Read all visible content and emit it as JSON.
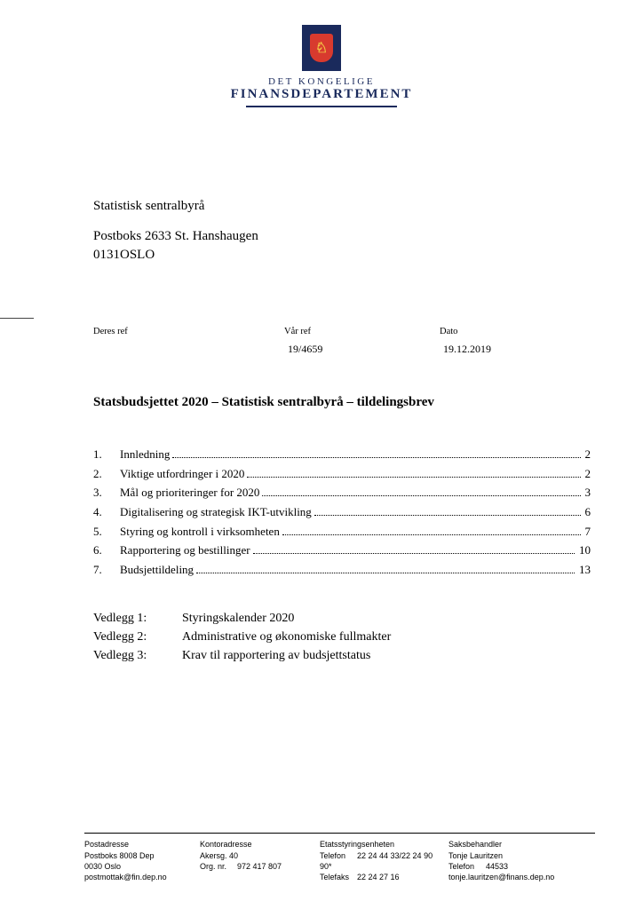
{
  "logo": {
    "line1": "DET KONGELIGE",
    "line2": "FINANSDEPARTEMENT",
    "crest_bg": "#1a2a5c",
    "shield_color": "#d83a2e",
    "lion_color": "#f2c744"
  },
  "recipient": {
    "name": "Statistisk sentralbyrå",
    "address1": "Postboks 2633 St. Hanshaugen",
    "address2": "0131OSLO"
  },
  "refs": {
    "your_ref_label": "Deres ref",
    "your_ref_value": "",
    "our_ref_label": "Vår ref",
    "our_ref_value": "19/4659",
    "date_label": "Dato",
    "date_value": "19.12.2019"
  },
  "subject": "Statsbudsjettet 2020 – Statistisk sentralbyrå – tildelingsbrev",
  "toc": [
    {
      "num": "1.",
      "title": "Innledning",
      "page": "2"
    },
    {
      "num": "2.",
      "title": "Viktige utfordringer i 2020",
      "page": "2"
    },
    {
      "num": "3.",
      "title": "Mål og prioriteringer for 2020",
      "page": "3"
    },
    {
      "num": "4.",
      "title": "Digitalisering og strategisk IKT-utvikling",
      "page": "6"
    },
    {
      "num": "5.",
      "title": "Styring og kontroll i virksomheten",
      "page": "7"
    },
    {
      "num": "6.",
      "title": "Rapportering og bestillinger",
      "page": "10"
    },
    {
      "num": "7.",
      "title": "Budsjettildeling",
      "page": "13"
    }
  ],
  "attachments": [
    {
      "label": "Vedlegg 1:",
      "title": "Styringskalender 2020"
    },
    {
      "label": "Vedlegg 2:",
      "title": "Administrative og økonomiske fullmakter"
    },
    {
      "label": "Vedlegg 3:",
      "title": "Krav til rapportering av budsjettstatus"
    }
  ],
  "footer": {
    "col1": {
      "hd": "Postadresse",
      "l1": "Postboks 8008 Dep",
      "l2": "0030 Oslo",
      "l3": "postmottak@fin.dep.no"
    },
    "col2": {
      "hd": "Kontoradresse",
      "l1": "Akersg. 40",
      "l2_label": "Org. nr.",
      "l2_value": "972 417 807"
    },
    "col3": {
      "hd": "Etatsstyringsenheten",
      "tel_label": "Telefon",
      "tel_value": "22 24 44 33/22 24 90",
      "l2": "90*",
      "fax_label": "Telefaks",
      "fax_value": "22 24 27 16"
    },
    "col4": {
      "hd": "Saksbehandler",
      "l1": "Tonje Lauritzen",
      "tel_label": "Telefon",
      "tel_value": "44533",
      "l3": "tonje.lauritzen@finans.dep.no"
    }
  }
}
